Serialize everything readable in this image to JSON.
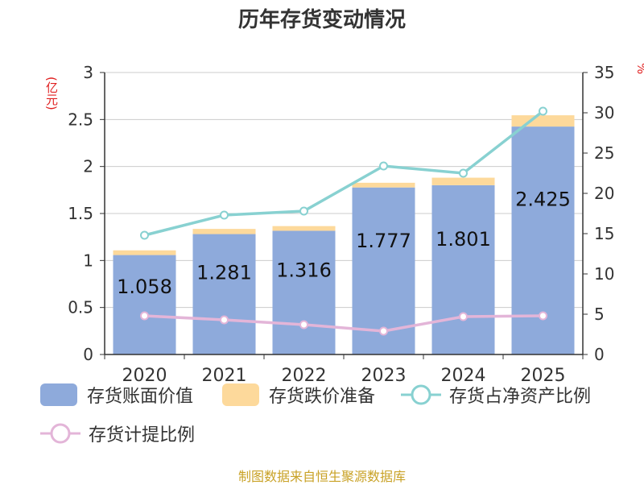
{
  "chart_data": {
    "type": "bar",
    "title": "历年存货变动情况",
    "ylabel_left": "(亿元)",
    "ylabel_right": "%",
    "categories": [
      "2020",
      "2021",
      "2022",
      "2023",
      "2024",
      "2025"
    ],
    "ylim_left": [
      0,
      3
    ],
    "yticks_left": [
      "0",
      "0.5",
      "1",
      "1.5",
      "2",
      "2.5",
      "3"
    ],
    "ylim_right": [
      0,
      35
    ],
    "yticks_right": [
      "0",
      "5",
      "10",
      "15",
      "20",
      "25",
      "30",
      "35"
    ],
    "series": [
      {
        "name": "存货账面价值",
        "kind": "bar",
        "axis": "left",
        "color": "#8eaadb",
        "values": [
          1.058,
          1.281,
          1.316,
          1.777,
          1.801,
          2.425
        ],
        "labels": [
          "1.058",
          "1.281",
          "1.316",
          "1.777",
          "1.801",
          "2.425"
        ]
      },
      {
        "name": "存货跌价准备",
        "kind": "bar-stack",
        "axis": "left",
        "color": "#fdd99b",
        "values": [
          0.05,
          0.055,
          0.05,
          0.05,
          0.08,
          0.12
        ]
      },
      {
        "name": "存货占净资产比例",
        "kind": "line",
        "axis": "right",
        "color": "#88d1d1",
        "values": [
          14.8,
          17.3,
          17.8,
          23.4,
          22.5,
          30.2
        ]
      },
      {
        "name": "存货计提比例",
        "kind": "line",
        "axis": "right",
        "color": "#e3b5d8",
        "values": [
          4.8,
          4.3,
          3.7,
          2.9,
          4.7,
          4.8
        ]
      }
    ],
    "grid": true,
    "legend_position": "bottom"
  },
  "source": "制图数据来自恒生聚源数据库"
}
